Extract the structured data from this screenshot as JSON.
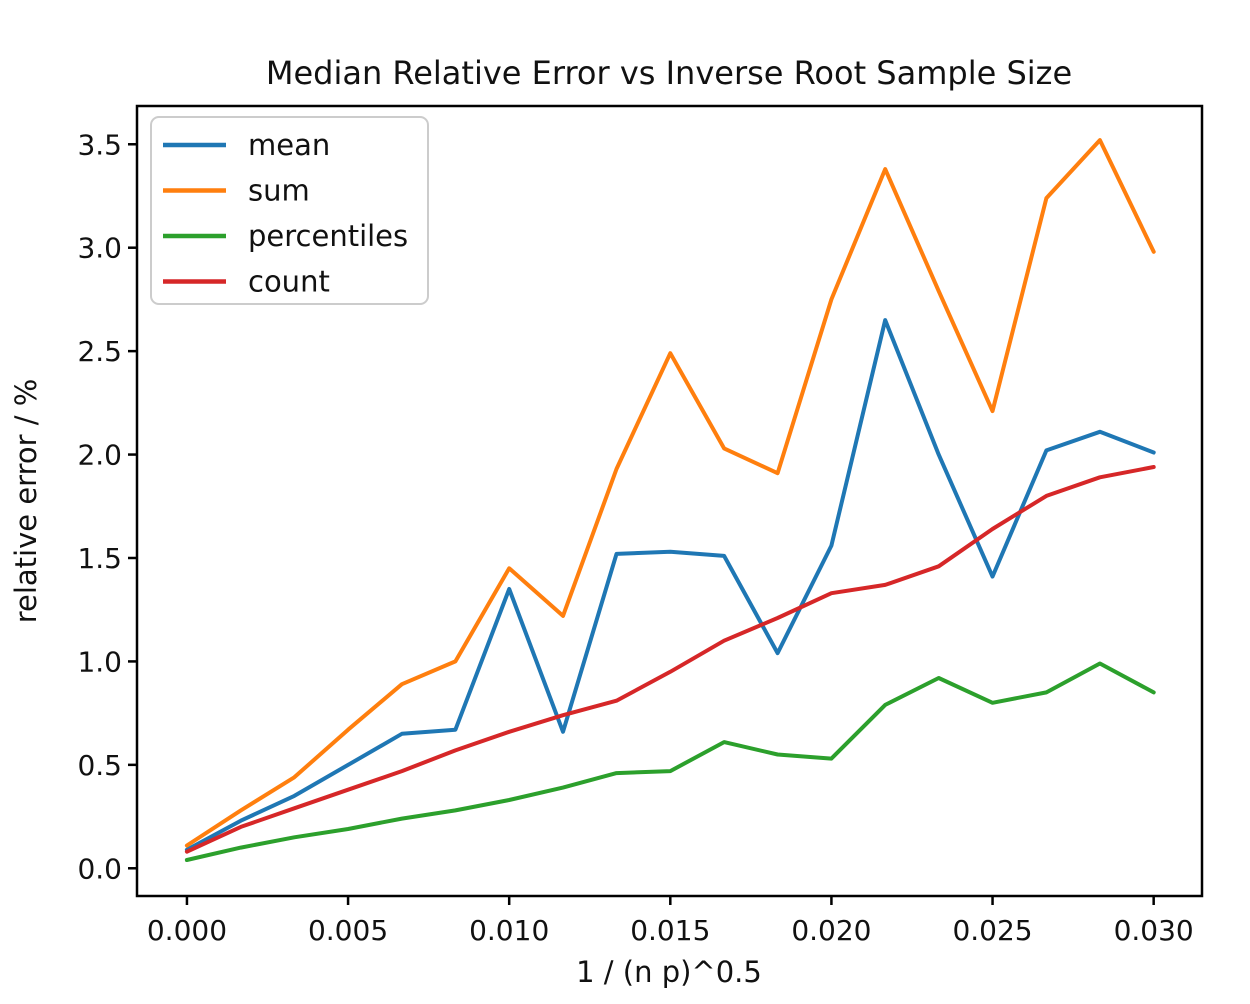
{
  "figure": {
    "title": "Median Relative Error vs Inverse Root Sample Size"
  },
  "chart_data": {
    "type": "line",
    "title": "Median Relative Error vs Inverse Root Sample Size",
    "xlabel": "1 / (n p)^0.5",
    "ylabel": "relative error / %",
    "grid": false,
    "legend_position": "upper left",
    "xlim": [
      -0.00155,
      0.0315
    ],
    "ylim": [
      -0.134,
      3.685
    ],
    "x_ticks": [
      0.0,
      0.005,
      0.01,
      0.015,
      0.02,
      0.025,
      0.03
    ],
    "x_tick_labels": [
      "0.000",
      "0.005",
      "0.010",
      "0.015",
      "0.020",
      "0.025",
      "0.030"
    ],
    "y_ticks": [
      0.0,
      0.5,
      1.0,
      1.5,
      2.0,
      2.5,
      3.0,
      3.5
    ],
    "y_tick_labels": [
      "0.0",
      "0.5",
      "1.0",
      "1.5",
      "2.0",
      "2.5",
      "3.0",
      "3.5"
    ],
    "x": [
      0.0,
      0.00167,
      0.00333,
      0.005,
      0.00667,
      0.00833,
      0.01,
      0.01167,
      0.01333,
      0.015,
      0.01667,
      0.01833,
      0.02,
      0.02167,
      0.02333,
      0.025,
      0.02667,
      0.02833,
      0.03
    ],
    "series": [
      {
        "name": "mean",
        "color": "#1f77b4",
        "values": [
          0.09,
          0.23,
          0.35,
          0.5,
          0.65,
          0.67,
          1.35,
          0.66,
          1.52,
          1.53,
          1.51,
          1.04,
          1.56,
          2.65,
          2.0,
          1.41,
          2.02,
          2.11,
          2.01
        ]
      },
      {
        "name": "sum",
        "color": "#ff7f0e",
        "values": [
          0.11,
          0.28,
          0.44,
          0.67,
          0.89,
          1.0,
          1.45,
          1.22,
          1.93,
          2.49,
          2.03,
          1.91,
          2.75,
          3.38,
          2.79,
          2.21,
          3.24,
          3.52,
          2.98
        ]
      },
      {
        "name": "percentiles",
        "color": "#2ca02c",
        "values": [
          0.04,
          0.1,
          0.15,
          0.19,
          0.24,
          0.28,
          0.33,
          0.39,
          0.46,
          0.47,
          0.61,
          0.55,
          0.53,
          0.79,
          0.92,
          0.8,
          0.85,
          0.99,
          0.85
        ]
      },
      {
        "name": "count",
        "color": "#d62728",
        "values": [
          0.08,
          0.2,
          0.29,
          0.38,
          0.47,
          0.57,
          0.66,
          0.74,
          0.81,
          0.95,
          1.1,
          1.21,
          1.33,
          1.37,
          1.46,
          1.64,
          1.8,
          1.89,
          1.94
        ]
      }
    ]
  }
}
